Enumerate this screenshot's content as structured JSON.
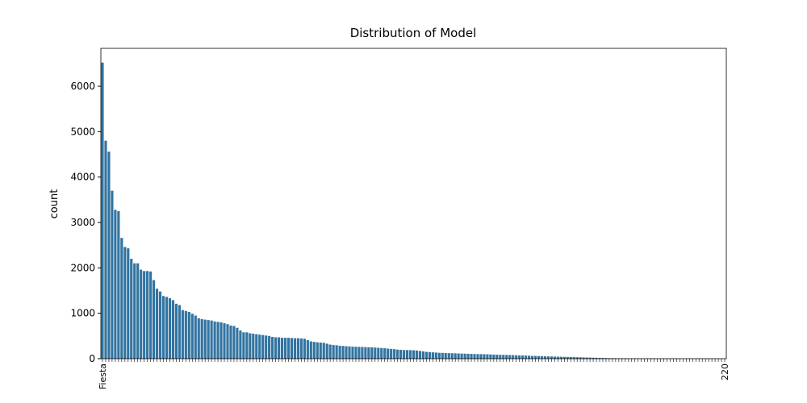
{
  "chart_data": {
    "type": "bar",
    "title": "Distribution of Model",
    "y_label": "count",
    "color": "#3274a1",
    "categories": [
      "Fiesta",
      null,
      null,
      null,
      null,
      null,
      null,
      null,
      null,
      null,
      null,
      null,
      null,
      null,
      null,
      null,
      null,
      null,
      null,
      null,
      null,
      null,
      null,
      null,
      null,
      null,
      null,
      null,
      null,
      null,
      null,
      null,
      null,
      null,
      null,
      null,
      null,
      null,
      null,
      null,
      null,
      null,
      null,
      null,
      null,
      null,
      null,
      null,
      null,
      null,
      null,
      null,
      null,
      null,
      null,
      null,
      null,
      null,
      null,
      null,
      null,
      null,
      null,
      null,
      null,
      null,
      null,
      null,
      null,
      null,
      null,
      null,
      null,
      null,
      null,
      null,
      null,
      null,
      null,
      null,
      null,
      null,
      null,
      null,
      null,
      null,
      null,
      null,
      null,
      null,
      null,
      null,
      null,
      null,
      null,
      null,
      null,
      null,
      null,
      null,
      null,
      null,
      null,
      null,
      null,
      null,
      null,
      null,
      null,
      null,
      null,
      null,
      null,
      null,
      null,
      null,
      null,
      null,
      null,
      null,
      null,
      null,
      null,
      null,
      null,
      null,
      null,
      null,
      null,
      null,
      null,
      null,
      null,
      null,
      null,
      null,
      null,
      null,
      null,
      null,
      null,
      null,
      null,
      null,
      null,
      null,
      null,
      null,
      null,
      null,
      null,
      null,
      null,
      null,
      null,
      null,
      null,
      null,
      null,
      null,
      null,
      null,
      null,
      null,
      null,
      null,
      null,
      null,
      null,
      null,
      null,
      null,
      null,
      null,
      null,
      null,
      null,
      null,
      null,
      null,
      null,
      null,
      null,
      null,
      null,
      null,
      null,
      null,
      null,
      null,
      null,
      null,
      null,
      null,
      "220"
    ],
    "values": [
      6520,
      4800,
      4560,
      3700,
      3280,
      3250,
      2660,
      2460,
      2430,
      2200,
      2100,
      2100,
      1960,
      1930,
      1930,
      1920,
      1730,
      1540,
      1480,
      1380,
      1360,
      1330,
      1290,
      1210,
      1180,
      1070,
      1050,
      1030,
      990,
      950,
      890,
      870,
      860,
      850,
      840,
      820,
      810,
      800,
      780,
      760,
      730,
      720,
      680,
      620,
      580,
      580,
      560,
      550,
      540,
      530,
      520,
      510,
      500,
      480,
      470,
      470,
      460,
      460,
      460,
      455,
      450,
      450,
      445,
      440,
      410,
      380,
      370,
      360,
      355,
      350,
      330,
      310,
      300,
      295,
      285,
      280,
      275,
      270,
      265,
      262,
      260,
      258,
      255,
      252,
      250,
      245,
      240,
      235,
      230,
      220,
      215,
      210,
      200,
      195,
      190,
      190,
      188,
      185,
      180,
      170,
      160,
      150,
      145,
      140,
      135,
      130,
      128,
      125,
      122,
      120,
      118,
      115,
      112,
      110,
      108,
      105,
      103,
      100,
      100,
      98,
      96,
      94,
      90,
      88,
      86,
      84,
      82,
      80,
      78,
      75,
      72,
      70,
      68,
      65,
      62,
      60,
      58,
      55,
      52,
      50,
      48,
      46,
      44,
      42,
      40,
      38,
      36,
      34,
      32,
      30,
      28,
      26,
      24,
      22,
      20,
      18,
      16,
      14,
      12,
      11,
      10,
      9,
      8,
      7,
      6,
      5,
      5,
      4,
      4,
      3,
      3,
      3,
      2,
      2,
      2,
      2,
      1,
      1,
      1,
      1,
      1,
      1,
      1,
      1,
      1,
      1,
      1,
      1,
      1,
      1,
      1,
      1,
      1,
      1,
      1
    ],
    "ylim": [
      0,
      6835
    ],
    "yticks": [
      0,
      1000,
      2000,
      3000,
      4000,
      5000,
      6000
    ]
  }
}
